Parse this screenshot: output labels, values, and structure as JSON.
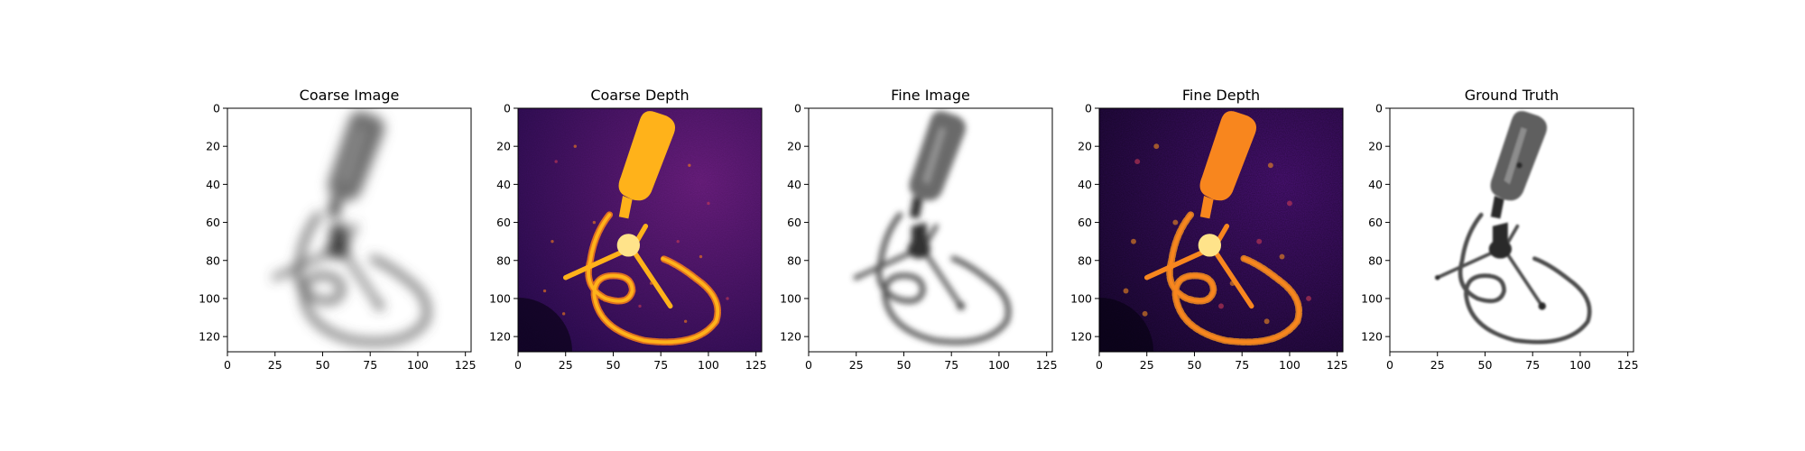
{
  "figure": {
    "panels": [
      {
        "title": "Coarse Image",
        "kind": "rgb",
        "content": "blurry grayscale render of a microphone on a stand with coiled cable",
        "colors": {
          "background": "#ffffff",
          "object": "#6f6f6f",
          "cable": "#555555"
        }
      },
      {
        "title": "Coarse Depth",
        "kind": "depth",
        "content": "inferno-colormap depth of microphone, stand and coiled cable",
        "colors": {
          "background_low": "#2a0b52",
          "background_high": "#6d1f82",
          "object": "#ffb21a",
          "object_edge": "#f97f18"
        }
      },
      {
        "title": "Fine Image",
        "kind": "rgb",
        "content": "sharper grayscale render of microphone with coiled cable",
        "colors": {
          "background": "#ffffff",
          "object": "#6a6a6a",
          "cable": "#515151"
        }
      },
      {
        "title": "Fine Depth",
        "kind": "depth",
        "content": "inferno-colormap depth with more speckle noise",
        "colors": {
          "background_low": "#1d0838",
          "background_high": "#4e137a",
          "object": "#f8861e",
          "object_edge": "#f28c1f"
        }
      },
      {
        "title": "Ground Truth",
        "kind": "rgb",
        "content": "clean ground-truth image of microphone on stand with coiled cable",
        "colors": {
          "background": "#ffffff",
          "object": "#5e5e5e",
          "cable": "#4d4d4d"
        }
      }
    ],
    "axes": {
      "x_ticks": [
        "0",
        "25",
        "50",
        "75",
        "100",
        "125"
      ],
      "y_ticks": [
        "0",
        "20",
        "40",
        "60",
        "80",
        "100",
        "120"
      ]
    }
  }
}
